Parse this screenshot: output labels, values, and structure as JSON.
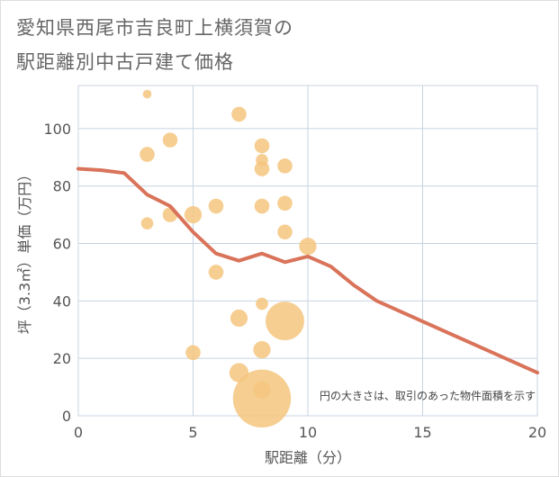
{
  "title": {
    "line1": "愛知県西尾市吉良町上横須賀の",
    "line2": "駅距離別中古戸建て価格"
  },
  "chart_data": {
    "type": "scatter",
    "title": "愛知県西尾市吉良町上横須賀の駅距離別中古戸建て価格",
    "xlabel": "駅距離（分）",
    "ylabel": "坪（3.3㎡）単価（万円）",
    "xlim": [
      0,
      20
    ],
    "ylim": [
      0,
      115
    ],
    "x_ticks": [
      0,
      5,
      10,
      15,
      20
    ],
    "y_ticks": [
      0,
      20,
      40,
      60,
      80,
      100
    ],
    "grid": true,
    "note": "円の大きさは、取引のあった物件面積を示す",
    "colors": {
      "points": "#f5c67f",
      "trend": "#d9735a",
      "grid": "#c8d4e0"
    },
    "points": [
      {
        "x": 3,
        "y": 112,
        "size": 1
      },
      {
        "x": 3,
        "y": 91,
        "size": 3
      },
      {
        "x": 3,
        "y": 67,
        "size": 2
      },
      {
        "x": 4,
        "y": 96,
        "size": 3
      },
      {
        "x": 4,
        "y": 70,
        "size": 3
      },
      {
        "x": 5,
        "y": 70,
        "size": 4
      },
      {
        "x": 5,
        "y": 22,
        "size": 3
      },
      {
        "x": 6,
        "y": 73,
        "size": 3
      },
      {
        "x": 6,
        "y": 50,
        "size": 3
      },
      {
        "x": 7,
        "y": 105,
        "size": 3
      },
      {
        "x": 7,
        "y": 34,
        "size": 4
      },
      {
        "x": 7,
        "y": 15,
        "size": 5
      },
      {
        "x": 8,
        "y": 94,
        "size": 3
      },
      {
        "x": 8,
        "y": 89,
        "size": 2
      },
      {
        "x": 8,
        "y": 86,
        "size": 3
      },
      {
        "x": 8,
        "y": 73,
        "size": 3
      },
      {
        "x": 8,
        "y": 39,
        "size": 2
      },
      {
        "x": 8,
        "y": 23,
        "size": 4
      },
      {
        "x": 8,
        "y": 9,
        "size": 4
      },
      {
        "x": 8,
        "y": 6,
        "size": 45
      },
      {
        "x": 9,
        "y": 87,
        "size": 3
      },
      {
        "x": 9,
        "y": 74,
        "size": 3
      },
      {
        "x": 9,
        "y": 64,
        "size": 3
      },
      {
        "x": 9,
        "y": 33,
        "size": 20
      },
      {
        "x": 10,
        "y": 59,
        "size": 4
      }
    ],
    "trend": [
      {
        "x": 0,
        "y": 86
      },
      {
        "x": 1,
        "y": 85.5
      },
      {
        "x": 2,
        "y": 84.5
      },
      {
        "x": 3,
        "y": 77
      },
      {
        "x": 4,
        "y": 73
      },
      {
        "x": 5,
        "y": 64
      },
      {
        "x": 6,
        "y": 56.5
      },
      {
        "x": 7,
        "y": 54
      },
      {
        "x": 8,
        "y": 56.5
      },
      {
        "x": 9,
        "y": 53.5
      },
      {
        "x": 10,
        "y": 55.5
      },
      {
        "x": 11,
        "y": 52
      },
      {
        "x": 12,
        "y": 45.5
      },
      {
        "x": 13,
        "y": 40
      },
      {
        "x": 20,
        "y": 15
      }
    ]
  }
}
